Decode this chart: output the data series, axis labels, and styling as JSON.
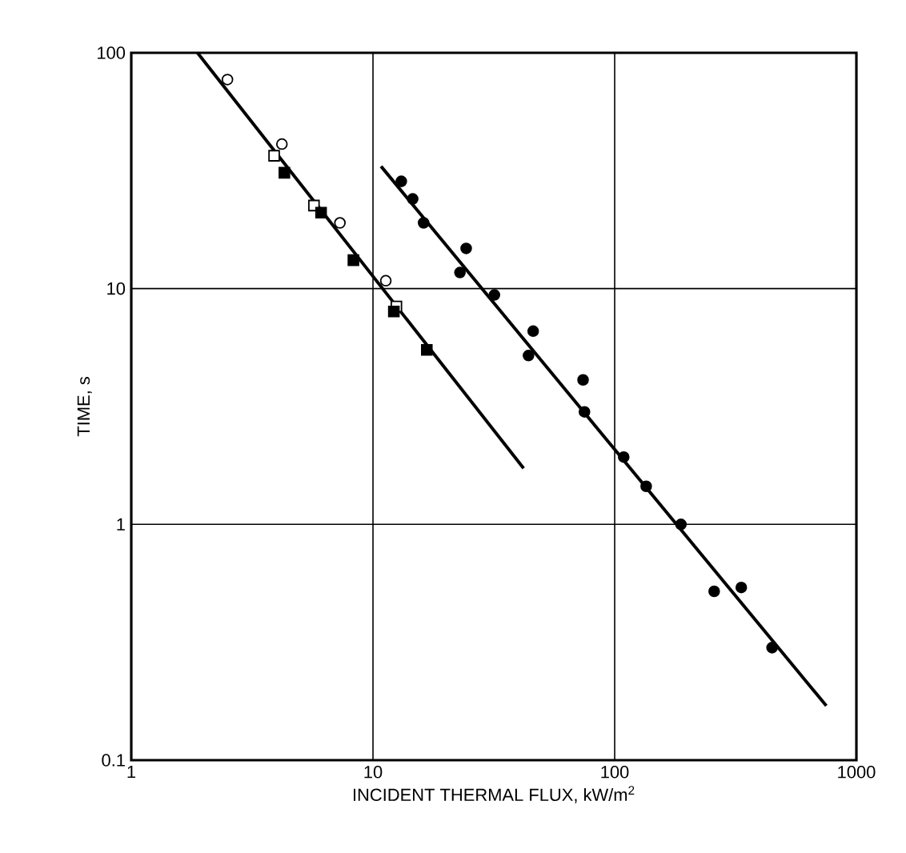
{
  "chart_data": {
    "type": "scatter",
    "xlabel": "INCIDENT THERMAL FLUX, kW/m$^{2}$",
    "ylabel": "TIME, s",
    "log": "xy",
    "grid": true,
    "xlim": [
      1,
      1000
    ],
    "ylim": [
      0.1,
      100
    ],
    "xticks": [
      1,
      10,
      100,
      1000
    ],
    "yticks": [
      0.1,
      1,
      10,
      100
    ],
    "series": [
      {
        "marker": "circle",
        "color": "#ffffff",
        "x": [
          2.5,
          4.2,
          7.3,
          11.3
        ],
        "values": [
          77,
          41,
          19,
          10.8
        ]
      },
      {
        "marker": "square",
        "color": "#ffffff",
        "x": [
          3.9,
          5.7,
          12.5
        ],
        "values": [
          36.6,
          22.5,
          8.4
        ]
      },
      {
        "marker": "square",
        "color": "#000000",
        "x": [
          4.3,
          6.1,
          8.3,
          12.2,
          16.7
        ],
        "values": [
          31,
          21,
          13.2,
          8.0,
          5.5
        ]
      },
      {
        "marker": "circle",
        "color": "#000000",
        "x": [
          13.1,
          14.6,
          16.2,
          24.3,
          22.9,
          31.8,
          46,
          44,
          74,
          75,
          109,
          135,
          188,
          258,
          334,
          448
        ],
        "values": [
          28.5,
          24,
          19,
          14.8,
          11.7,
          9.4,
          6.6,
          5.2,
          4.1,
          3.0,
          1.93,
          1.45,
          1.0,
          0.52,
          0.54,
          0.3
        ]
      },
      {
        "type": "line",
        "marker": "none",
        "color": "#000000",
        "x": [
          1.88,
          42
        ],
        "values": [
          100,
          1.73
        ]
      },
      {
        "type": "line",
        "marker": "none",
        "color": "#000000",
        "x": [
          10.8,
          751
        ],
        "values": [
          33,
          0.17
        ]
      }
    ]
  }
}
